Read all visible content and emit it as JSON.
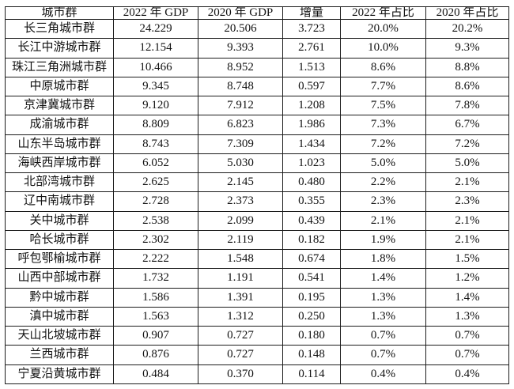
{
  "chart_data": {
    "type": "table",
    "columns": [
      "城市群",
      "2022 年 GDP",
      "2020 年 GDP",
      "增量",
      "2022 年占比",
      "2020 年占比"
    ],
    "rows": [
      {
        "cluster": "长三角城市群",
        "gdp_2022": "24.229",
        "gdp_2020": "20.506",
        "increase": "3.723",
        "share_2022": "20.0%",
        "share_2020": "20.2%"
      },
      {
        "cluster": "长江中游城市群",
        "gdp_2022": "12.154",
        "gdp_2020": "9.393",
        "increase": "2.761",
        "share_2022": "10.0%",
        "share_2020": "9.3%"
      },
      {
        "cluster": "珠江三角洲城市群",
        "gdp_2022": "10.466",
        "gdp_2020": "8.952",
        "increase": "1.513",
        "share_2022": "8.6%",
        "share_2020": "8.8%"
      },
      {
        "cluster": "中原城市群",
        "gdp_2022": "9.345",
        "gdp_2020": "8.748",
        "increase": "0.597",
        "share_2022": "7.7%",
        "share_2020": "8.6%"
      },
      {
        "cluster": "京津冀城市群",
        "gdp_2022": "9.120",
        "gdp_2020": "7.912",
        "increase": "1.208",
        "share_2022": "7.5%",
        "share_2020": "7.8%"
      },
      {
        "cluster": "成渝城市群",
        "gdp_2022": "8.809",
        "gdp_2020": "6.823",
        "increase": "1.986",
        "share_2022": "7.3%",
        "share_2020": "6.7%"
      },
      {
        "cluster": "山东半岛城市群",
        "gdp_2022": "8.743",
        "gdp_2020": "7.309",
        "increase": "1.434",
        "share_2022": "7.2%",
        "share_2020": "7.2%"
      },
      {
        "cluster": "海峡西岸城市群",
        "gdp_2022": "6.052",
        "gdp_2020": "5.030",
        "increase": "1.023",
        "share_2022": "5.0%",
        "share_2020": "5.0%"
      },
      {
        "cluster": "北部湾城市群",
        "gdp_2022": "2.625",
        "gdp_2020": "2.145",
        "increase": "0.480",
        "share_2022": "2.2%",
        "share_2020": "2.1%"
      },
      {
        "cluster": "辽中南城市群",
        "gdp_2022": "2.728",
        "gdp_2020": "2.373",
        "increase": "0.355",
        "share_2022": "2.3%",
        "share_2020": "2.3%"
      },
      {
        "cluster": "关中城市群",
        "gdp_2022": "2.538",
        "gdp_2020": "2.099",
        "increase": "0.439",
        "share_2022": "2.1%",
        "share_2020": "2.1%"
      },
      {
        "cluster": "哈长城市群",
        "gdp_2022": "2.302",
        "gdp_2020": "2.119",
        "increase": "0.182",
        "share_2022": "1.9%",
        "share_2020": "2.1%"
      },
      {
        "cluster": "呼包鄂榆城市群",
        "gdp_2022": "2.222",
        "gdp_2020": "1.548",
        "increase": "0.674",
        "share_2022": "1.8%",
        "share_2020": "1.5%"
      },
      {
        "cluster": "山西中部城市群",
        "gdp_2022": "1.732",
        "gdp_2020": "1.191",
        "increase": "0.541",
        "share_2022": "1.4%",
        "share_2020": "1.2%"
      },
      {
        "cluster": "黔中城市群",
        "gdp_2022": "1.586",
        "gdp_2020": "1.391",
        "increase": "0.195",
        "share_2022": "1.3%",
        "share_2020": "1.4%"
      },
      {
        "cluster": "滇中城市群",
        "gdp_2022": "1.563",
        "gdp_2020": "1.312",
        "increase": "0.250",
        "share_2022": "1.3%",
        "share_2020": "1.3%"
      },
      {
        "cluster": "天山北坡城市群",
        "gdp_2022": "0.907",
        "gdp_2020": "0.727",
        "increase": "0.180",
        "share_2022": "0.7%",
        "share_2020": "0.7%"
      },
      {
        "cluster": "兰西城市群",
        "gdp_2022": "0.876",
        "gdp_2020": "0.727",
        "increase": "0.148",
        "share_2022": "0.7%",
        "share_2020": "0.7%"
      },
      {
        "cluster": "宁夏沿黄城市群",
        "gdp_2022": "0.484",
        "gdp_2020": "0.370",
        "increase": "0.114",
        "share_2022": "0.4%",
        "share_2020": "0.4%"
      }
    ],
    "colors": {
      "border": "#1c1c1c",
      "text": "#121212",
      "background": "#ffffff"
    }
  }
}
